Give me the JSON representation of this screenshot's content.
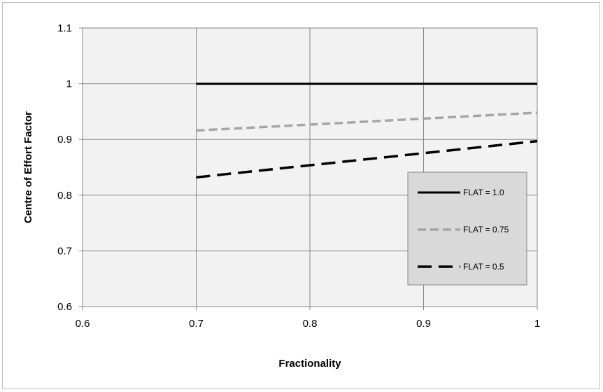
{
  "chart_data": {
    "type": "line",
    "title": "",
    "xlabel": "Fractionality",
    "ylabel": "Centre of Effort Factor",
    "xlim": [
      0.6,
      1.0
    ],
    "ylim": [
      0.6,
      1.1
    ],
    "xticks": [
      0.6,
      0.7,
      0.8,
      0.9,
      1.0
    ],
    "xtick_labels": [
      "0.6",
      "0.7",
      "0.8",
      "0.9",
      "1"
    ],
    "yticks": [
      0.6,
      0.7,
      0.8,
      0.9,
      1.0,
      1.1
    ],
    "ytick_labels": [
      "0.6",
      "0.7",
      "0.8",
      "0.9",
      "1",
      "1.1"
    ],
    "grid": true,
    "legend_position": "bottom-right",
    "plot_background": "#f2f2f2",
    "series": [
      {
        "name": "FLAT = 1.0",
        "x": [
          0.7,
          1.0
        ],
        "y": [
          1.0,
          1.0
        ],
        "color": "#000000",
        "style": "solid"
      },
      {
        "name": "FLAT = 0.75",
        "x": [
          0.7,
          1.0
        ],
        "y": [
          0.916,
          0.948
        ],
        "color": "#a6a6a6",
        "style": "dashed"
      },
      {
        "name": "FLAT = 0.5",
        "x": [
          0.7,
          1.0
        ],
        "y": [
          0.832,
          0.897
        ],
        "color": "#000000",
        "style": "long-dashed"
      }
    ]
  }
}
